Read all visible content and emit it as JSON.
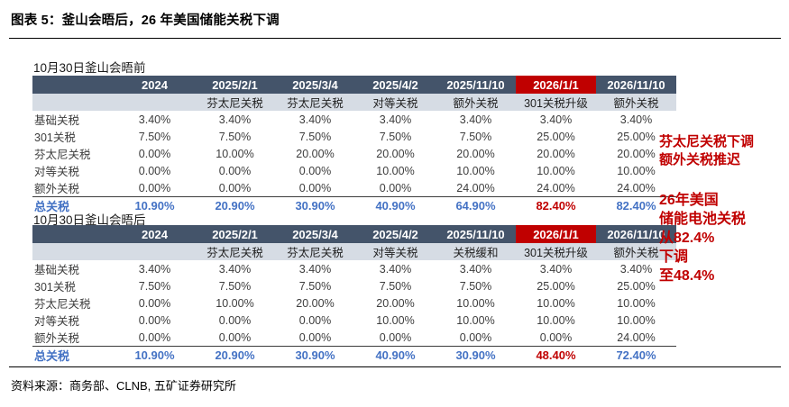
{
  "figure": {
    "title": "图表 5：釜山会晤后，26 年美国储能关税下调",
    "source": "资料来源：商务部、CLNB, 五矿证券研究所"
  },
  "colors": {
    "header_bg": "#44546A",
    "header_text": "#FFFFFF",
    "subheader_bg": "#D6DCE4",
    "highlight_red": "#C00000",
    "total_blue": "#4472C4"
  },
  "tables": [
    {
      "label": "10月30日釜山会晤前",
      "columns": [
        "2024",
        "2025/2/1",
        "2025/3/4",
        "2025/4/2",
        "2025/11/10",
        "2026/1/1",
        "2026/11/10"
      ],
      "subheaders": [
        "",
        "芬太尼关税",
        "芬太尼关税",
        "对等关税",
        "额外关税",
        "301关税升级",
        "额外关税"
      ],
      "highlight_col": 5,
      "rows": [
        {
          "label": "基础关税",
          "values": [
            "3.40%",
            "3.40%",
            "3.40%",
            "3.40%",
            "3.40%",
            "3.40%",
            "3.40%"
          ]
        },
        {
          "label": "301关税",
          "values": [
            "7.50%",
            "7.50%",
            "7.50%",
            "7.50%",
            "7.50%",
            "25.00%",
            "25.00%"
          ]
        },
        {
          "label": "芬太尼关税",
          "values": [
            "0.00%",
            "10.00%",
            "20.00%",
            "20.00%",
            "20.00%",
            "20.00%",
            "20.00%"
          ]
        },
        {
          "label": "对等关税",
          "values": [
            "0.00%",
            "0.00%",
            "0.00%",
            "10.00%",
            "10.00%",
            "10.00%",
            "10.00%"
          ]
        },
        {
          "label": "额外关税",
          "values": [
            "0.00%",
            "0.00%",
            "0.00%",
            "0.00%",
            "24.00%",
            "24.00%",
            "24.00%"
          ]
        }
      ],
      "total": {
        "label": "总关税",
        "values": [
          "10.90%",
          "20.90%",
          "30.90%",
          "40.90%",
          "64.90%",
          "82.40%",
          "82.40%"
        ],
        "red_cols": [
          5
        ]
      }
    },
    {
      "label": "10月30日釜山会晤后",
      "columns": [
        "2024",
        "2025/2/1",
        "2025/3/4",
        "2025/4/2",
        "2025/11/10",
        "2026/1/1",
        "2026/11/10"
      ],
      "subheaders": [
        "",
        "芬太尼关税",
        "芬太尼关税",
        "对等关税",
        "关税缓和",
        "301关税升级",
        "额外关税"
      ],
      "highlight_col": 5,
      "rows": [
        {
          "label": "基础关税",
          "values": [
            "3.40%",
            "3.40%",
            "3.40%",
            "3.40%",
            "3.40%",
            "3.40%",
            "3.40%"
          ]
        },
        {
          "label": "301关税",
          "values": [
            "7.50%",
            "7.50%",
            "7.50%",
            "7.50%",
            "7.50%",
            "25.00%",
            "25.00%"
          ]
        },
        {
          "label": "芬太尼关税",
          "values": [
            "0.00%",
            "10.00%",
            "20.00%",
            "20.00%",
            "10.00%",
            "10.00%",
            "10.00%"
          ]
        },
        {
          "label": "对等关税",
          "values": [
            "0.00%",
            "0.00%",
            "0.00%",
            "10.00%",
            "10.00%",
            "10.00%",
            "10.00%"
          ]
        },
        {
          "label": "额外关税",
          "values": [
            "0.00%",
            "0.00%",
            "0.00%",
            "0.00%",
            "0.00%",
            "0.00%",
            "24.00%"
          ]
        }
      ],
      "total": {
        "label": "总关税",
        "values": [
          "10.90%",
          "20.90%",
          "30.90%",
          "40.90%",
          "30.90%",
          "48.40%",
          "72.40%"
        ],
        "red_cols": [
          5
        ]
      }
    }
  ],
  "annotations": [
    {
      "lines": [
        "芬太尼关税下调",
        "额外关税推迟"
      ]
    },
    {
      "lines": [
        "26年美国",
        "储能电池关税",
        "从82.4%",
        "下调",
        "至48.4%"
      ]
    }
  ]
}
